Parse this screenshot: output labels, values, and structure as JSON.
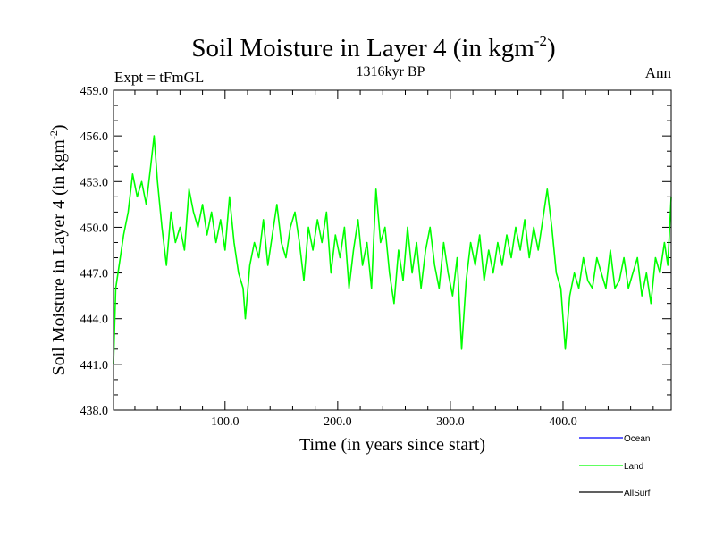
{
  "chart_data": {
    "type": "line",
    "title": "Soil Moisture in Layer 4 (in kgm",
    "title_sup": "-2",
    "title_close": ")",
    "subtitle_left": "Expt = tFmGL",
    "subtitle_center": "1316kyr BP",
    "subtitle_right": "Ann",
    "xlabel": "Time (in years since start)",
    "ylabel": "Soil Moisture in Layer 4 (in kgm",
    "ylabel_sup": "-2",
    "ylabel_close": ")",
    "xlim": [
      1,
      496
    ],
    "ylim": [
      438.0,
      459.0
    ],
    "xticks": [
      100,
      200,
      300,
      400
    ],
    "xtick_labels": [
      "100.0",
      "200.0",
      "300.0",
      "400.0"
    ],
    "yticks": [
      438,
      441,
      444,
      447,
      450,
      453,
      456,
      459
    ],
    "ytick_labels": [
      "438.0",
      "441.0",
      "444.0",
      "447.0",
      "450.0",
      "453.0",
      "456.0",
      "459.0"
    ],
    "legend": [
      {
        "name": "Ocean",
        "color": "#0000ff"
      },
      {
        "name": "Land",
        "color": "#00ff00"
      },
      {
        "name": "AllSurf",
        "color": "#000000"
      }
    ],
    "series": [
      {
        "name": "Land",
        "color": "#00ff00",
        "x": [
          1,
          3,
          6,
          10,
          14,
          18,
          22,
          26,
          30,
          34,
          37,
          40,
          44,
          48,
          52,
          56,
          60,
          64,
          68,
          72,
          76,
          80,
          84,
          88,
          92,
          96,
          100,
          104,
          108,
          112,
          116,
          118,
          122,
          126,
          130,
          134,
          138,
          142,
          146,
          150,
          154,
          158,
          162,
          166,
          170,
          174,
          178,
          182,
          186,
          190,
          194,
          198,
          202,
          206,
          210,
          214,
          218,
          222,
          226,
          230,
          234,
          238,
          242,
          246,
          250,
          254,
          258,
          262,
          266,
          270,
          274,
          278,
          282,
          286,
          290,
          294,
          298,
          302,
          306,
          310,
          314,
          318,
          322,
          326,
          330,
          334,
          338,
          342,
          346,
          350,
          354,
          358,
          362,
          366,
          370,
          374,
          378,
          382,
          386,
          390,
          394,
          398,
          402,
          406,
          410,
          414,
          418,
          422,
          426,
          430,
          434,
          438,
          442,
          446,
          450,
          454,
          458,
          462,
          466,
          470,
          474,
          478,
          482,
          486,
          490,
          493,
          496
        ],
        "y": [
          441.0,
          446.0,
          447.5,
          449.5,
          451.0,
          453.5,
          452.0,
          453.0,
          451.5,
          454.0,
          456.0,
          453.0,
          450.0,
          447.5,
          451.0,
          449.0,
          450.0,
          448.5,
          452.5,
          451.0,
          450.0,
          451.5,
          449.5,
          451.0,
          449.0,
          450.5,
          448.5,
          452.0,
          449.0,
          447.0,
          446.0,
          444.0,
          447.5,
          449.0,
          448.0,
          450.5,
          447.5,
          449.5,
          451.5,
          449.0,
          448.0,
          450.0,
          451.0,
          449.0,
          446.5,
          450.0,
          448.5,
          450.5,
          449.0,
          451.0,
          447.0,
          449.5,
          448.0,
          450.0,
          446.0,
          448.5,
          450.5,
          447.5,
          449.0,
          446.0,
          452.5,
          449.0,
          450.0,
          447.0,
          445.0,
          448.5,
          446.5,
          450.0,
          447.0,
          449.0,
          446.0,
          448.5,
          450.0,
          447.5,
          446.0,
          449.0,
          447.0,
          445.5,
          448.0,
          442.0,
          446.5,
          449.0,
          447.5,
          449.5,
          446.5,
          448.5,
          447.0,
          449.0,
          447.5,
          449.5,
          448.0,
          450.0,
          448.5,
          450.5,
          448.0,
          450.0,
          448.5,
          450.5,
          452.5,
          450.0,
          447.0,
          446.0,
          442.0,
          445.5,
          447.0,
          446.0,
          448.0,
          446.5,
          446.0,
          448.0,
          447.0,
          446.0,
          448.5,
          446.0,
          446.5,
          448.0,
          446.0,
          447.0,
          448.0,
          445.5,
          447.0,
          445.0,
          448.0,
          447.0,
          449.0,
          447.5,
          452.0
        ]
      }
    ]
  }
}
